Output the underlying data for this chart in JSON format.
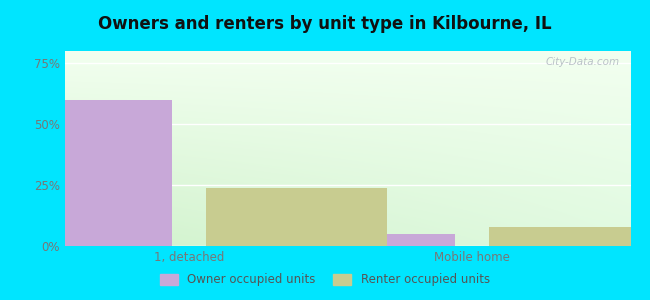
{
  "title": "Owners and renters by unit type in Kilbourne, IL",
  "categories": [
    "1, detached",
    "Mobile home"
  ],
  "owner_values": [
    60.0,
    5.0
  ],
  "renter_values": [
    24.0,
    8.0
  ],
  "owner_color": "#c8a8d8",
  "renter_color": "#c8cc90",
  "yticks": [
    0,
    25,
    50,
    75
  ],
  "ytick_labels": [
    "0%",
    "25%",
    "50%",
    "75%"
  ],
  "ylim": [
    0,
    80
  ],
  "bar_width": 0.32,
  "outer_bg": "#00e5ff",
  "watermark": "City-Data.com",
  "legend_owner": "Owner occupied units",
  "legend_renter": "Renter occupied units",
  "group_centers": [
    0.22,
    0.72
  ],
  "xlim": [
    0.0,
    1.0
  ]
}
